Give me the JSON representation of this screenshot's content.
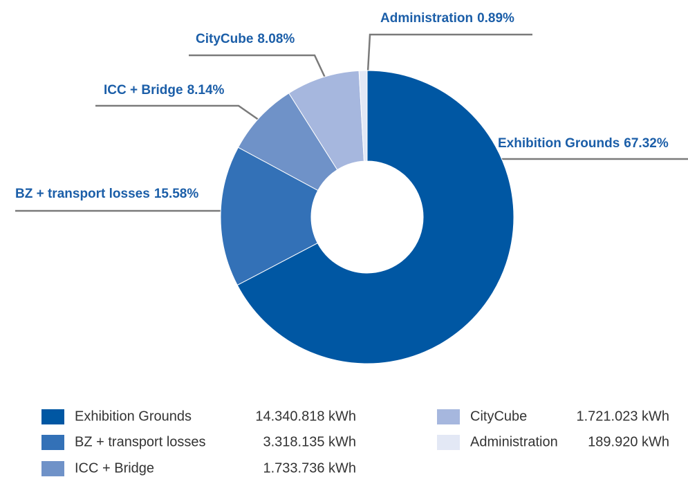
{
  "chart_data": {
    "type": "donut",
    "categories": [
      "Exhibition Grounds",
      "BZ + transport losses",
      "ICC + Bridge",
      "CityCube",
      "Administration"
    ],
    "values": [
      67.32,
      15.58,
      8.14,
      8.08,
      0.89
    ],
    "value_labels": [
      "67.32%",
      "15.58%",
      "8.14%",
      "8.08%",
      "0.89%"
    ],
    "colors": [
      "#0057a3",
      "#3371b7",
      "#6f92c8",
      "#a6b7de",
      "#e3e8f5"
    ],
    "legend_values": [
      "14.340.818 kWh",
      "3.318.135 kWh",
      "1.733.736 kWh",
      "1.721.023 kWh",
      "189.920 kWh"
    ]
  }
}
